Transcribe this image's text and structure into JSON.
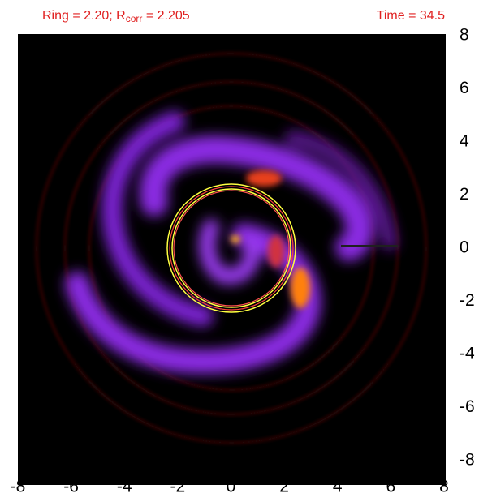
{
  "chart_data": {
    "type": "image",
    "annotations": {
      "ring": "Ring = 2.20; R",
      "ring_sub": "corr",
      "ring_rest": " = 2.205",
      "time": "Time = 34.5"
    },
    "xlim": [
      -8,
      8
    ],
    "ylim": [
      -8,
      8
    ],
    "xticks": [
      -8,
      -6,
      -4,
      -2,
      0,
      2,
      4,
      6,
      8
    ],
    "yticks": [
      -8,
      -6,
      -4,
      -2,
      0,
      2,
      4,
      6,
      8
    ]
  }
}
